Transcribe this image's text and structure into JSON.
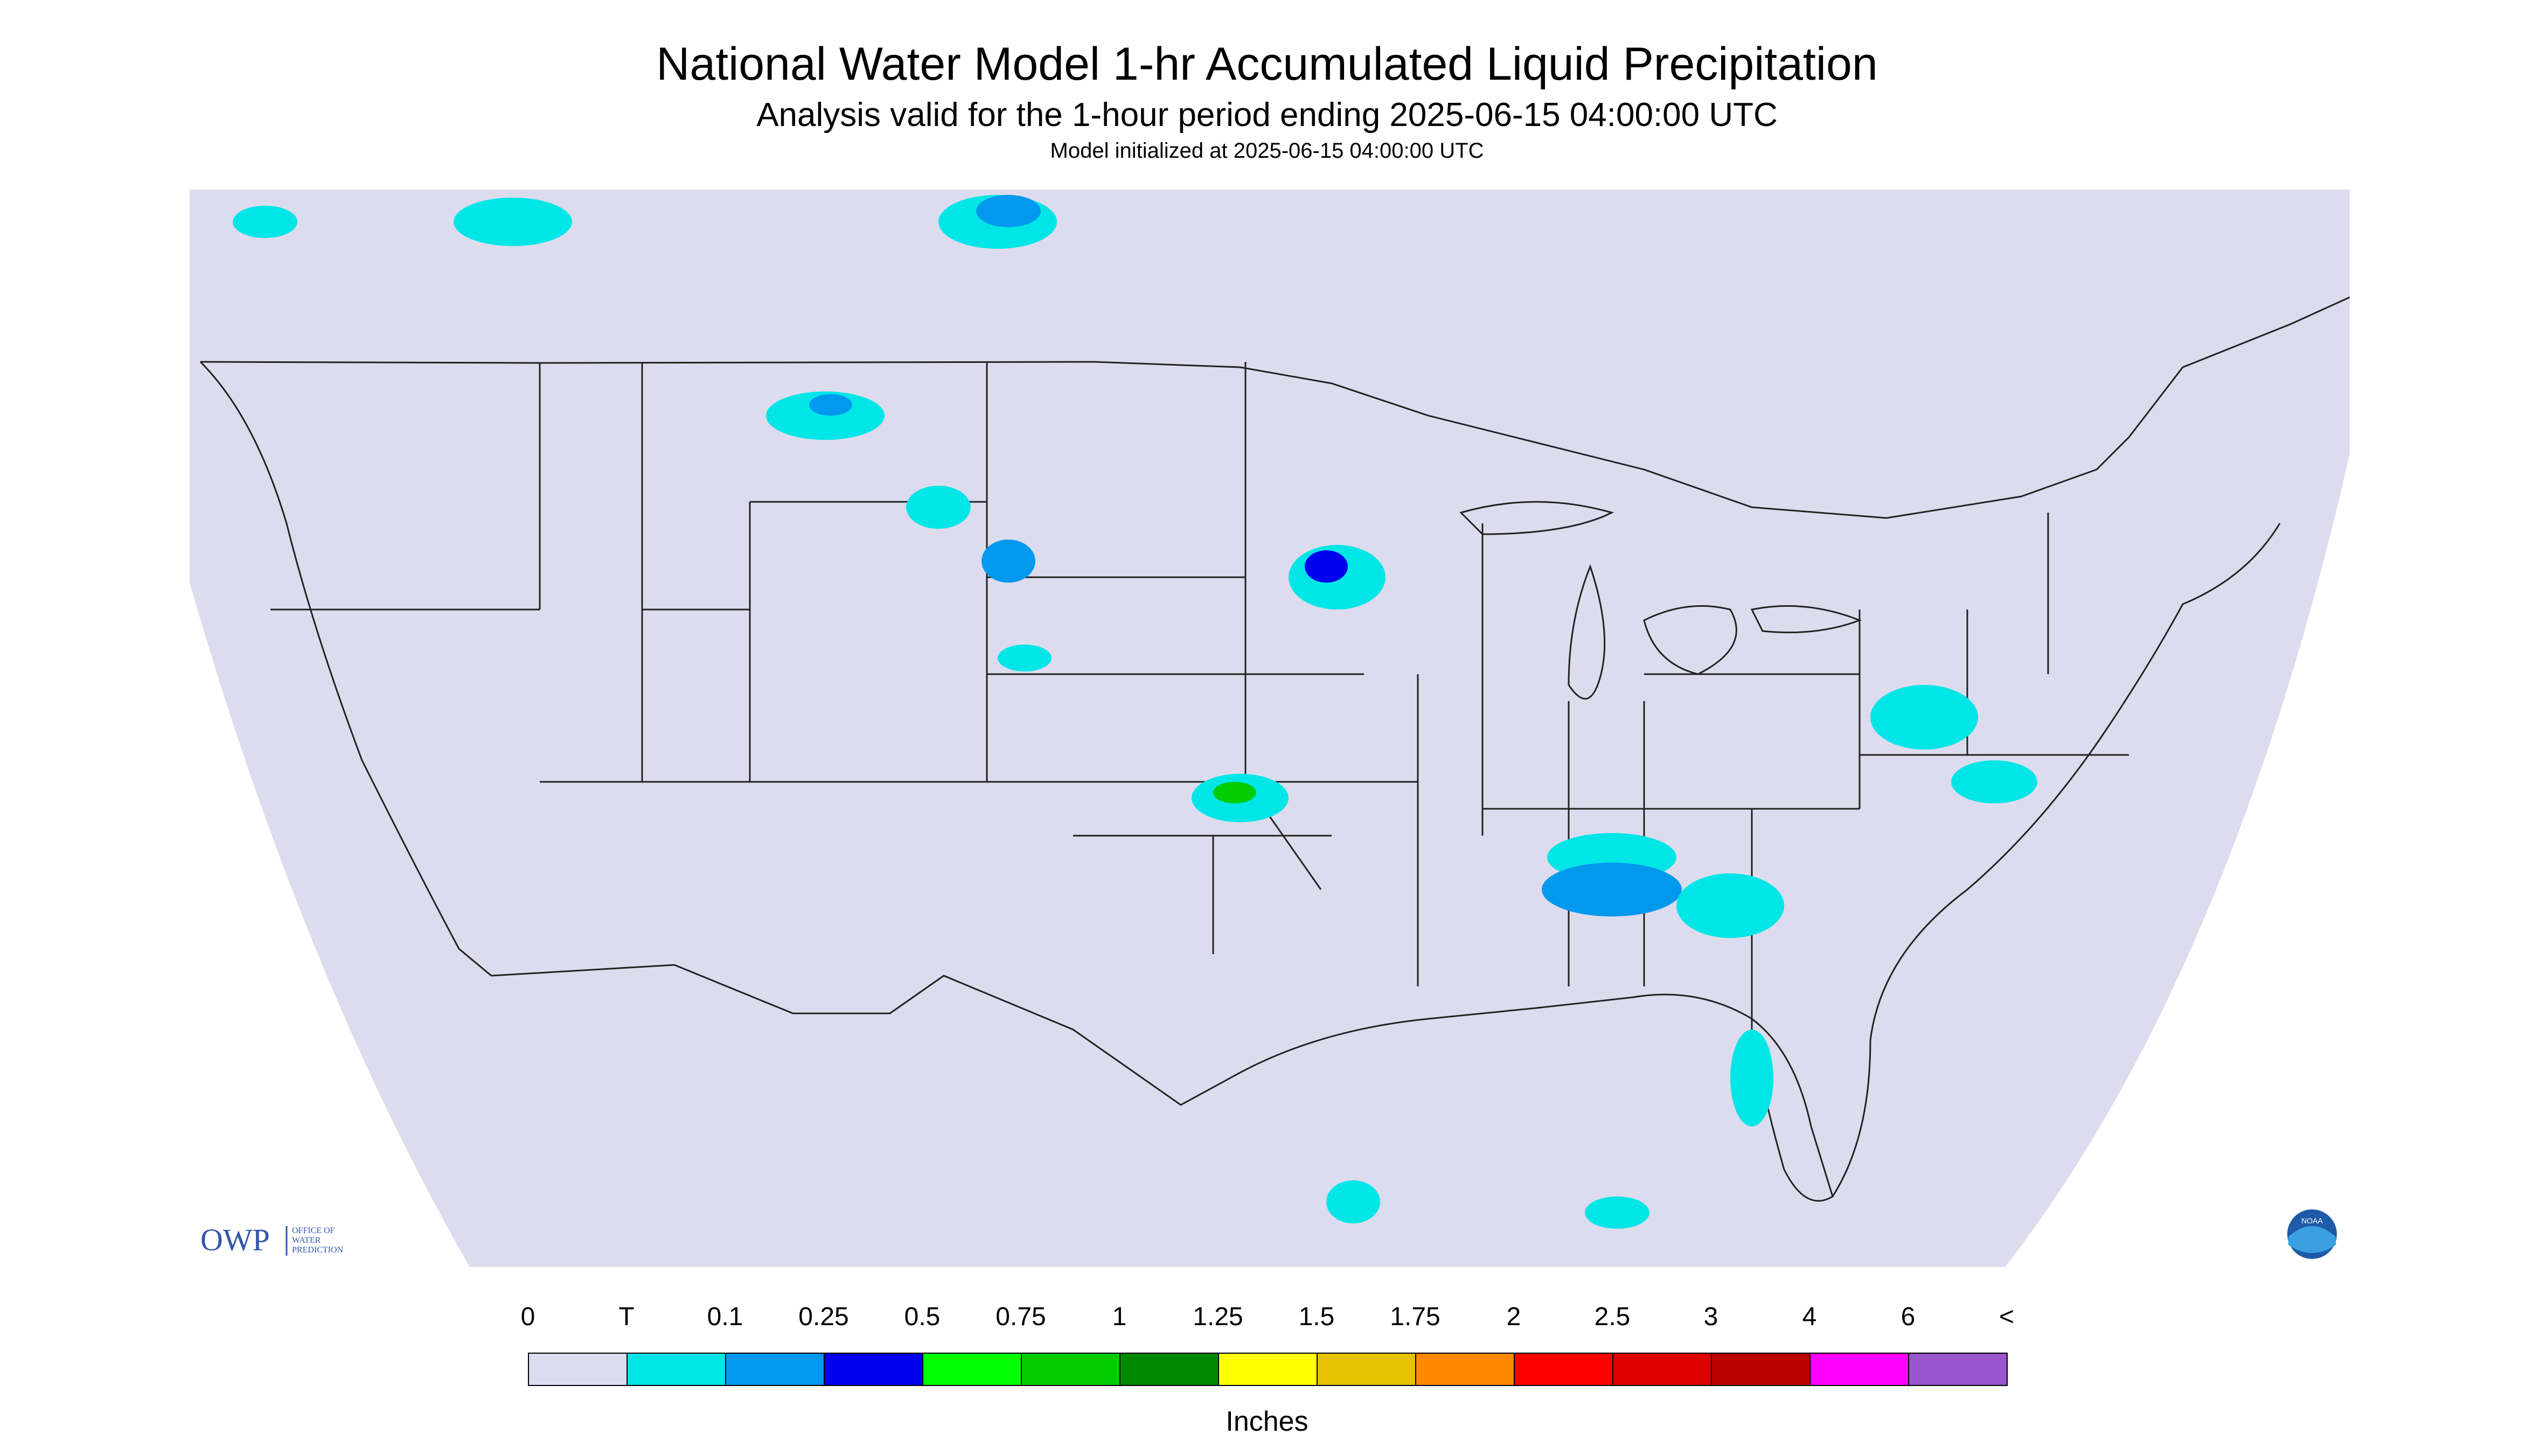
{
  "header": {
    "title": "National Water Model 1-hr Accumulated Liquid Precipitation",
    "subtitle": "Analysis valid for the 1-hour period ending 2025-06-15 04:00:00 UTC",
    "init": "Model initialized at 2025-06-15 04:00:00 UTC"
  },
  "map": {
    "background_color": "#dcdcee",
    "outside_color": "#ffffff",
    "boundary_color": "#222222",
    "logo_owp": "OWP",
    "logo_owp_text": [
      "OFFICE OF",
      "WATER",
      "PREDICTION"
    ],
    "logo_noaa": "NOAA"
  },
  "legend": {
    "labels": [
      "0",
      "T",
      "0.1",
      "0.25",
      "0.5",
      "0.75",
      "1",
      "1.25",
      "1.5",
      "1.75",
      "2",
      "2.5",
      "3",
      "4",
      "6",
      "<"
    ],
    "colors": [
      "#dcdcee",
      "#00e6e6",
      "#0099ee",
      "#0000ee",
      "#00ff00",
      "#00cc00",
      "#008800",
      "#ffff00",
      "#e6c200",
      "#ff8800",
      "#ff0000",
      "#dd0000",
      "#bb0000",
      "#ff00ff",
      "#9955cc"
    ],
    "units": "Inches"
  }
}
